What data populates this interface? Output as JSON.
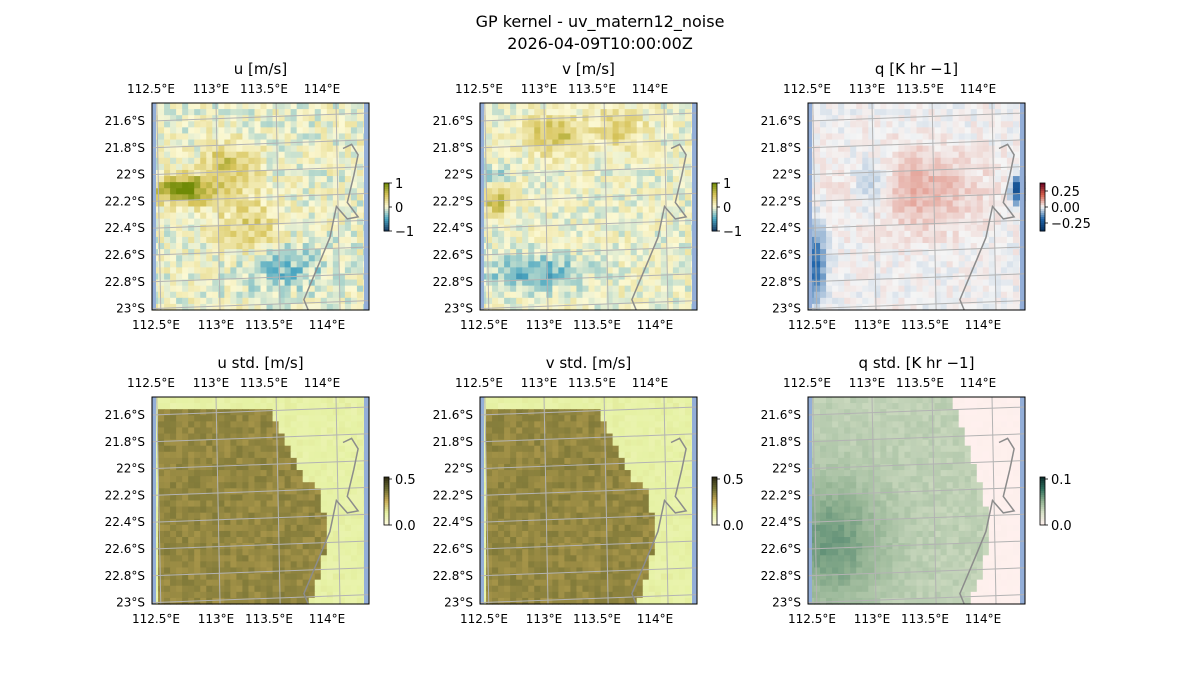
{
  "figure": {
    "title_line1": "GP kernel - uv_matern12_noise",
    "title_line2": "2026-04-09T10:00:00Z"
  },
  "axes": {
    "x_tick_labels": [
      "112.5°E",
      "113°E",
      "113.5°E",
      "114°E"
    ],
    "y_tick_labels": [
      "21.6°S",
      "21.8°S",
      "22°S",
      "22.2°S",
      "22.4°S",
      "22.6°S",
      "22.8°S",
      "23°S"
    ]
  },
  "colors": {
    "sea": "#93aed8",
    "coastline": "#8c8c8c",
    "gridline": "#b3b3b3",
    "frame": "#000000"
  },
  "chart_data": [
    {
      "type": "heatmap",
      "title": "u [m/s]",
      "colorbar_ticks": [
        "1",
        "0",
        "−1"
      ],
      "colorbar_range": [
        -1,
        1
      ],
      "colormap": [
        "#173a63",
        "#4aa6c1",
        "#fcf9d4",
        "#d7c45b",
        "#6f8a06"
      ],
      "pattern": "u"
    },
    {
      "type": "heatmap",
      "title": "v [m/s]",
      "colorbar_ticks": [
        "1",
        "0",
        "−1"
      ],
      "colorbar_range": [
        -1,
        1
      ],
      "colormap": [
        "#173a63",
        "#4aa6c1",
        "#fcf9d4",
        "#d7c45b",
        "#6f8a06"
      ],
      "pattern": "v"
    },
    {
      "type": "heatmap",
      "title": "q [K hr −1]",
      "colorbar_ticks": [
        "0.25",
        "0.00",
        "−0.25"
      ],
      "colorbar_range": [
        -0.35,
        0.35
      ],
      "colormap": [
        "#053061",
        "#2166ac",
        "#f5f5f5",
        "#d6604d",
        "#67001f"
      ],
      "pattern": "q"
    },
    {
      "type": "heatmap",
      "title": "u std. [m/s]",
      "colorbar_ticks": [
        "0.5",
        "0.0"
      ],
      "colorbar_range": [
        0,
        0.5
      ],
      "colormap": [
        "#fffbe0",
        "#e6f2a5",
        "#c8ac57",
        "#6a6a30",
        "#2d2a12"
      ],
      "pattern": "ustd"
    },
    {
      "type": "heatmap",
      "title": "v std. [m/s]",
      "colorbar_ticks": [
        "0.5",
        "0.0"
      ],
      "colorbar_range": [
        0,
        0.5
      ],
      "colormap": [
        "#fffbe0",
        "#e6f2a5",
        "#c8ac57",
        "#6a6a30",
        "#2d2a12"
      ],
      "pattern": "vstd"
    },
    {
      "type": "heatmap",
      "title": "q std. [K hr −1]",
      "colorbar_ticks": [
        "0.1",
        "0.0"
      ],
      "colorbar_range": [
        0,
        0.1
      ],
      "colormap": [
        "#fff0ee",
        "#d8e2c9",
        "#8fb090",
        "#2f6f5c",
        "#0b2b2a"
      ],
      "pattern": "qstd"
    }
  ]
}
